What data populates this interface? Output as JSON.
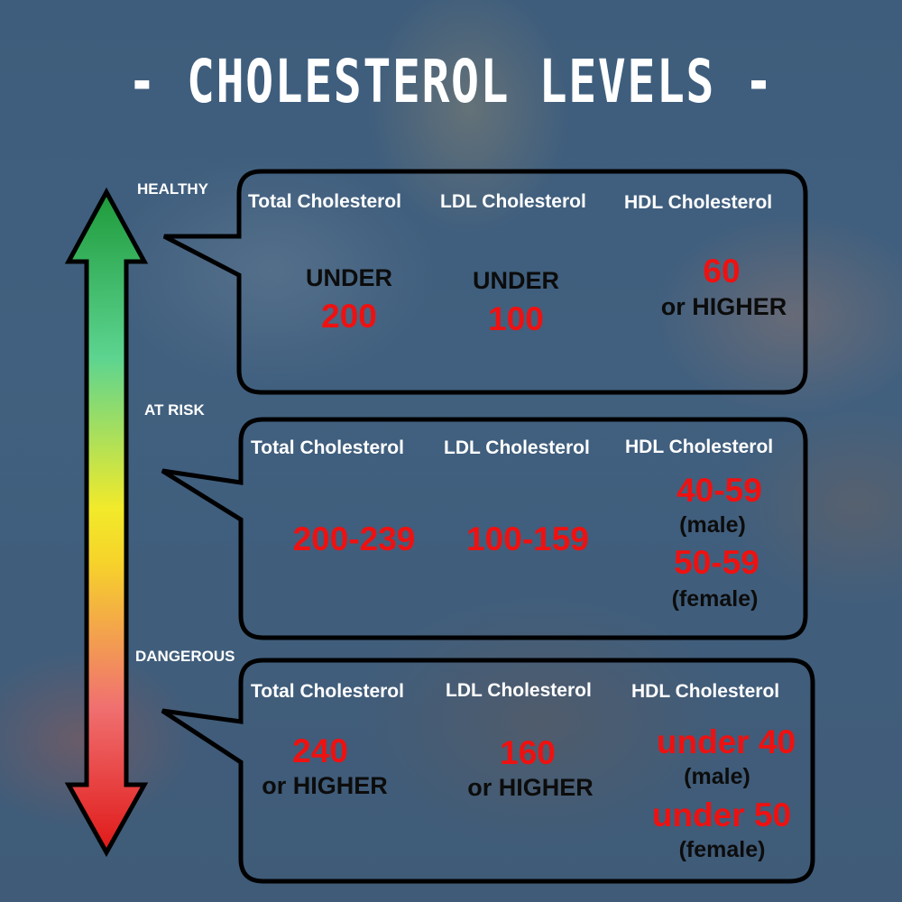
{
  "title": "- CHOLESTEROL LEVELS -",
  "colors": {
    "value_red": "#ee1111",
    "text_dark": "#0c0c0c",
    "header_white": "#ffffff",
    "arrow_top": "#1e9a3a",
    "arrow_mid": "#f2e82a",
    "arrow_bottom": "#e01818"
  },
  "icons": {
    "scale": "double-headed-arrow-icon"
  },
  "levels": {
    "healthy": {
      "label": "HEALTHY",
      "headers": [
        "Total Cholesterol",
        "LDL Cholesterol",
        "HDL Cholesterol"
      ],
      "total": {
        "prefix": "UNDER",
        "value": "200"
      },
      "ldl": {
        "prefix": "UNDER",
        "value": "100"
      },
      "hdl": {
        "value": "60",
        "suffix": "or HIGHER"
      }
    },
    "at_risk": {
      "label": "AT RISK",
      "headers": [
        "Total Cholesterol",
        "LDL Cholesterol",
        "HDL Cholesterol"
      ],
      "total": {
        "value": "200-239"
      },
      "ldl": {
        "value": "100-159"
      },
      "hdl": {
        "male_value": "40-59",
        "male_label": "(male)",
        "female_value": "50-59",
        "female_label": "(female)"
      }
    },
    "dangerous": {
      "label": "DANGEROUS",
      "headers": [
        "Total Cholesterol",
        "LDL Cholesterol",
        "HDL Cholesterol"
      ],
      "total": {
        "value": "240",
        "suffix": "or HIGHER"
      },
      "ldl": {
        "value": "160",
        "suffix": "or HIGHER"
      },
      "hdl": {
        "male_value": "under 40",
        "male_label": "(male)",
        "female_value": "under 50",
        "female_label": "(female)"
      }
    }
  }
}
